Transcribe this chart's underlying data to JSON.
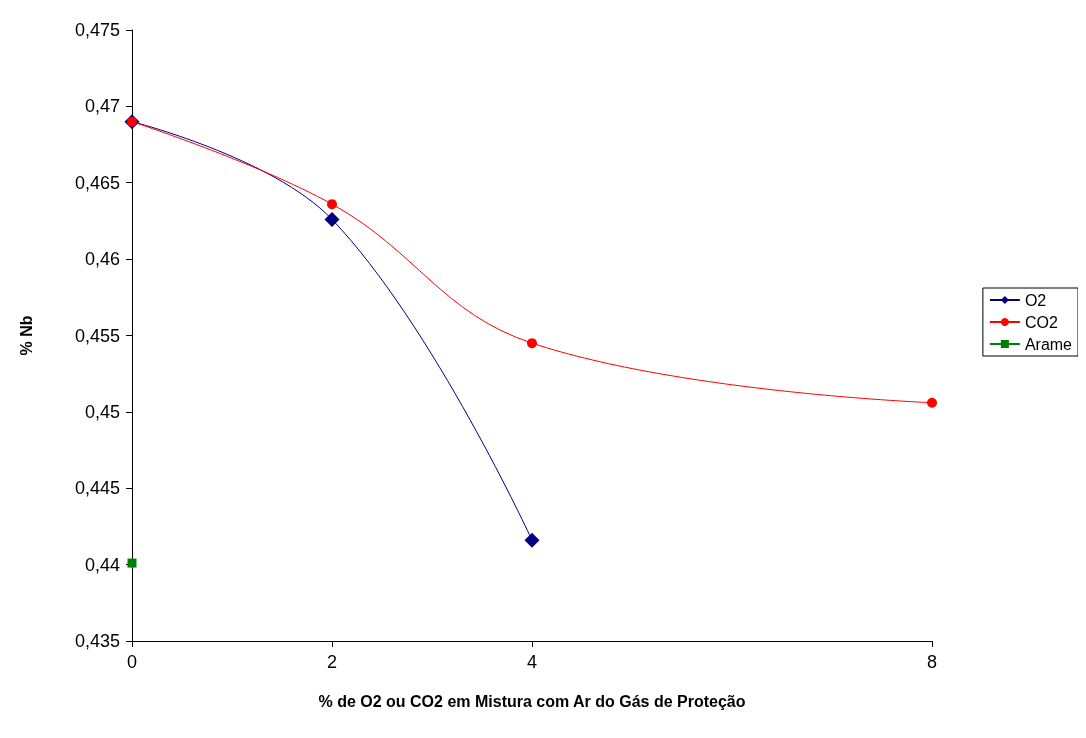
{
  "chart_data": {
    "type": "line",
    "xlabel": "% de O2 ou CO2 em Mistura com Ar do Gás de Proteção",
    "ylabel": "% Nb",
    "xlim": [
      0,
      8
    ],
    "xticks": [
      0,
      2,
      4,
      8
    ],
    "ylim": [
      0.435,
      0.475
    ],
    "yticks": [
      {
        "value": 0.435,
        "label": "0,435"
      },
      {
        "value": 0.44,
        "label": "0,44"
      },
      {
        "value": 0.445,
        "label": "0,445"
      },
      {
        "value": 0.45,
        "label": "0,45"
      },
      {
        "value": 0.455,
        "label": "0,455"
      },
      {
        "value": 0.46,
        "label": "0,46"
      },
      {
        "value": 0.465,
        "label": "0,465"
      },
      {
        "value": 0.47,
        "label": "0,47"
      },
      {
        "value": 0.475,
        "label": "0,475"
      }
    ],
    "grid": false,
    "legend": "right",
    "series": [
      {
        "name": "O2",
        "color": "#000080",
        "marker": "diamond",
        "x": [
          0,
          2,
          4
        ],
        "values": [
          0.469,
          0.4626,
          0.4416
        ]
      },
      {
        "name": "CO2",
        "color": "#ff0000",
        "marker": "circle",
        "x": [
          0,
          2,
          4,
          8
        ],
        "values": [
          0.469,
          0.4636,
          0.4545,
          0.4506
        ]
      },
      {
        "name": "Arame",
        "color": "#008000",
        "marker": "square",
        "x": [
          0
        ],
        "values": [
          0.4401
        ]
      }
    ]
  }
}
